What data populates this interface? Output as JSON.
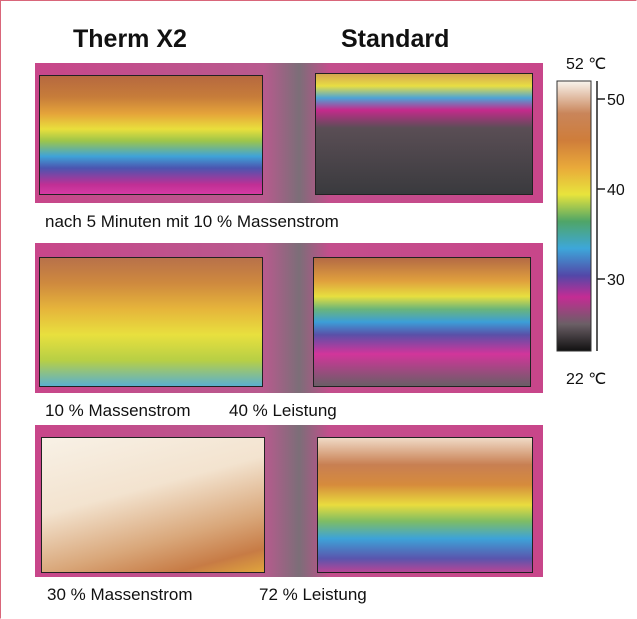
{
  "header": {
    "left_title": "Therm X2",
    "right_title": "Standard"
  },
  "rows": [
    {
      "caption": "nach 5 Minuten mit 10 % Massenstrom"
    },
    {
      "caption_left": "10 % Massenstrom",
      "caption_right": "40 % Leistung"
    },
    {
      "caption_left": "30 % Massenstrom",
      "caption_right": "72 % Leistung"
    }
  ],
  "colorbar": {
    "max_label": "52 ℃",
    "min_label": "22 ℃",
    "range": [
      22,
      52
    ],
    "ticks": [
      50,
      40,
      30
    ]
  }
}
